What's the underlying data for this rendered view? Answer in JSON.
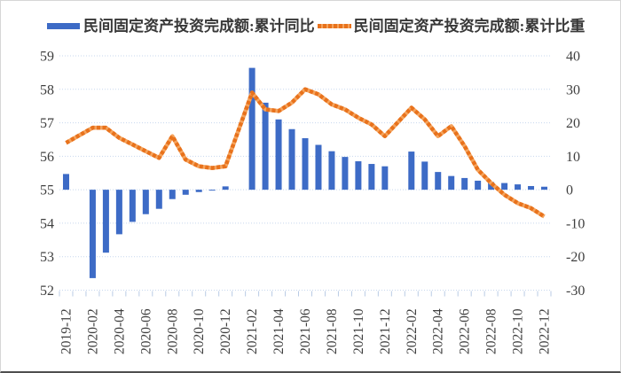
{
  "legend": [
    {
      "label": "民间固定资产投资完成额:累计同比",
      "swatch": "bar"
    },
    {
      "label": "民间固定资产投资完成额:累计比重",
      "swatch": "dashed-line"
    }
  ],
  "colors": {
    "bar_blue": "#3d6bc6",
    "line_orange": "#e8721c",
    "line_orange_light": "#f5a35c",
    "grid": "#c7d7ee",
    "tick": "#b9cbe5",
    "axis_text": "#3f3f3f"
  },
  "chart_data": {
    "type": "bar",
    "title": "",
    "xlabel": "",
    "ylabel": "",
    "grid": true,
    "legend_position": "top",
    "categories": [
      "2019-12",
      "2020-01",
      "2020-02",
      "2020-03",
      "2020-04",
      "2020-05",
      "2020-06",
      "2020-07",
      "2020-08",
      "2020-09",
      "2020-10",
      "2020-11",
      "2020-12",
      "2021-01",
      "2021-02",
      "2021-03",
      "2021-04",
      "2021-05",
      "2021-06",
      "2021-07",
      "2021-08",
      "2021-09",
      "2021-10",
      "2021-11",
      "2021-12",
      "2022-01",
      "2022-02",
      "2022-03",
      "2022-04",
      "2022-05",
      "2022-06",
      "2022-07",
      "2022-08",
      "2022-09",
      "2022-10",
      "2022-11",
      "2022-12"
    ],
    "x_tick_labels": [
      "2019-12",
      "2020-02",
      "2020-04",
      "2020-06",
      "2020-08",
      "2020-10",
      "2020-12",
      "2021-02",
      "2021-04",
      "2021-06",
      "2021-08",
      "2021-10",
      "2021-12",
      "2022-02",
      "2022-04",
      "2022-06",
      "2022-08",
      "2022-10",
      "2022-12"
    ],
    "series": [
      {
        "name": "民间固定资产投资完成额:累计同比",
        "type": "bar",
        "axis": "right",
        "values": [
          4.7,
          null,
          -26.4,
          -18.8,
          -13.3,
          -9.6,
          -7.3,
          -5.7,
          -2.8,
          -1.5,
          -0.7,
          -0.2,
          1.0,
          null,
          36.4,
          26.0,
          21.0,
          18.1,
          15.4,
          13.4,
          11.5,
          9.8,
          8.5,
          7.7,
          7.0,
          null,
          11.4,
          8.4,
          5.3,
          4.1,
          3.5,
          2.7,
          2.3,
          2.0,
          1.6,
          1.1,
          0.9
        ]
      },
      {
        "name": "民间固定资产投资完成额:累计比重",
        "type": "line",
        "style": "dashed",
        "axis": "left",
        "values": [
          56.4,
          null,
          56.85,
          56.85,
          56.55,
          56.35,
          56.15,
          55.95,
          56.6,
          55.9,
          55.7,
          55.65,
          55.7,
          null,
          57.9,
          57.4,
          57.35,
          57.6,
          58.0,
          57.85,
          57.55,
          57.4,
          57.15,
          56.95,
          56.6,
          null,
          57.45,
          57.1,
          56.6,
          56.9,
          56.3,
          55.6,
          55.2,
          54.85,
          54.6,
          54.45,
          54.2
        ]
      }
    ],
    "left_axis": {
      "min": 52,
      "max": 59,
      "step": 1,
      "ticks": [
        59,
        58,
        57,
        56,
        55,
        54,
        53,
        52
      ]
    },
    "right_axis": {
      "min": -30,
      "max": 40,
      "step": 10,
      "ticks": [
        40,
        30,
        20,
        10,
        0,
        -10,
        -20,
        -30
      ]
    }
  }
}
